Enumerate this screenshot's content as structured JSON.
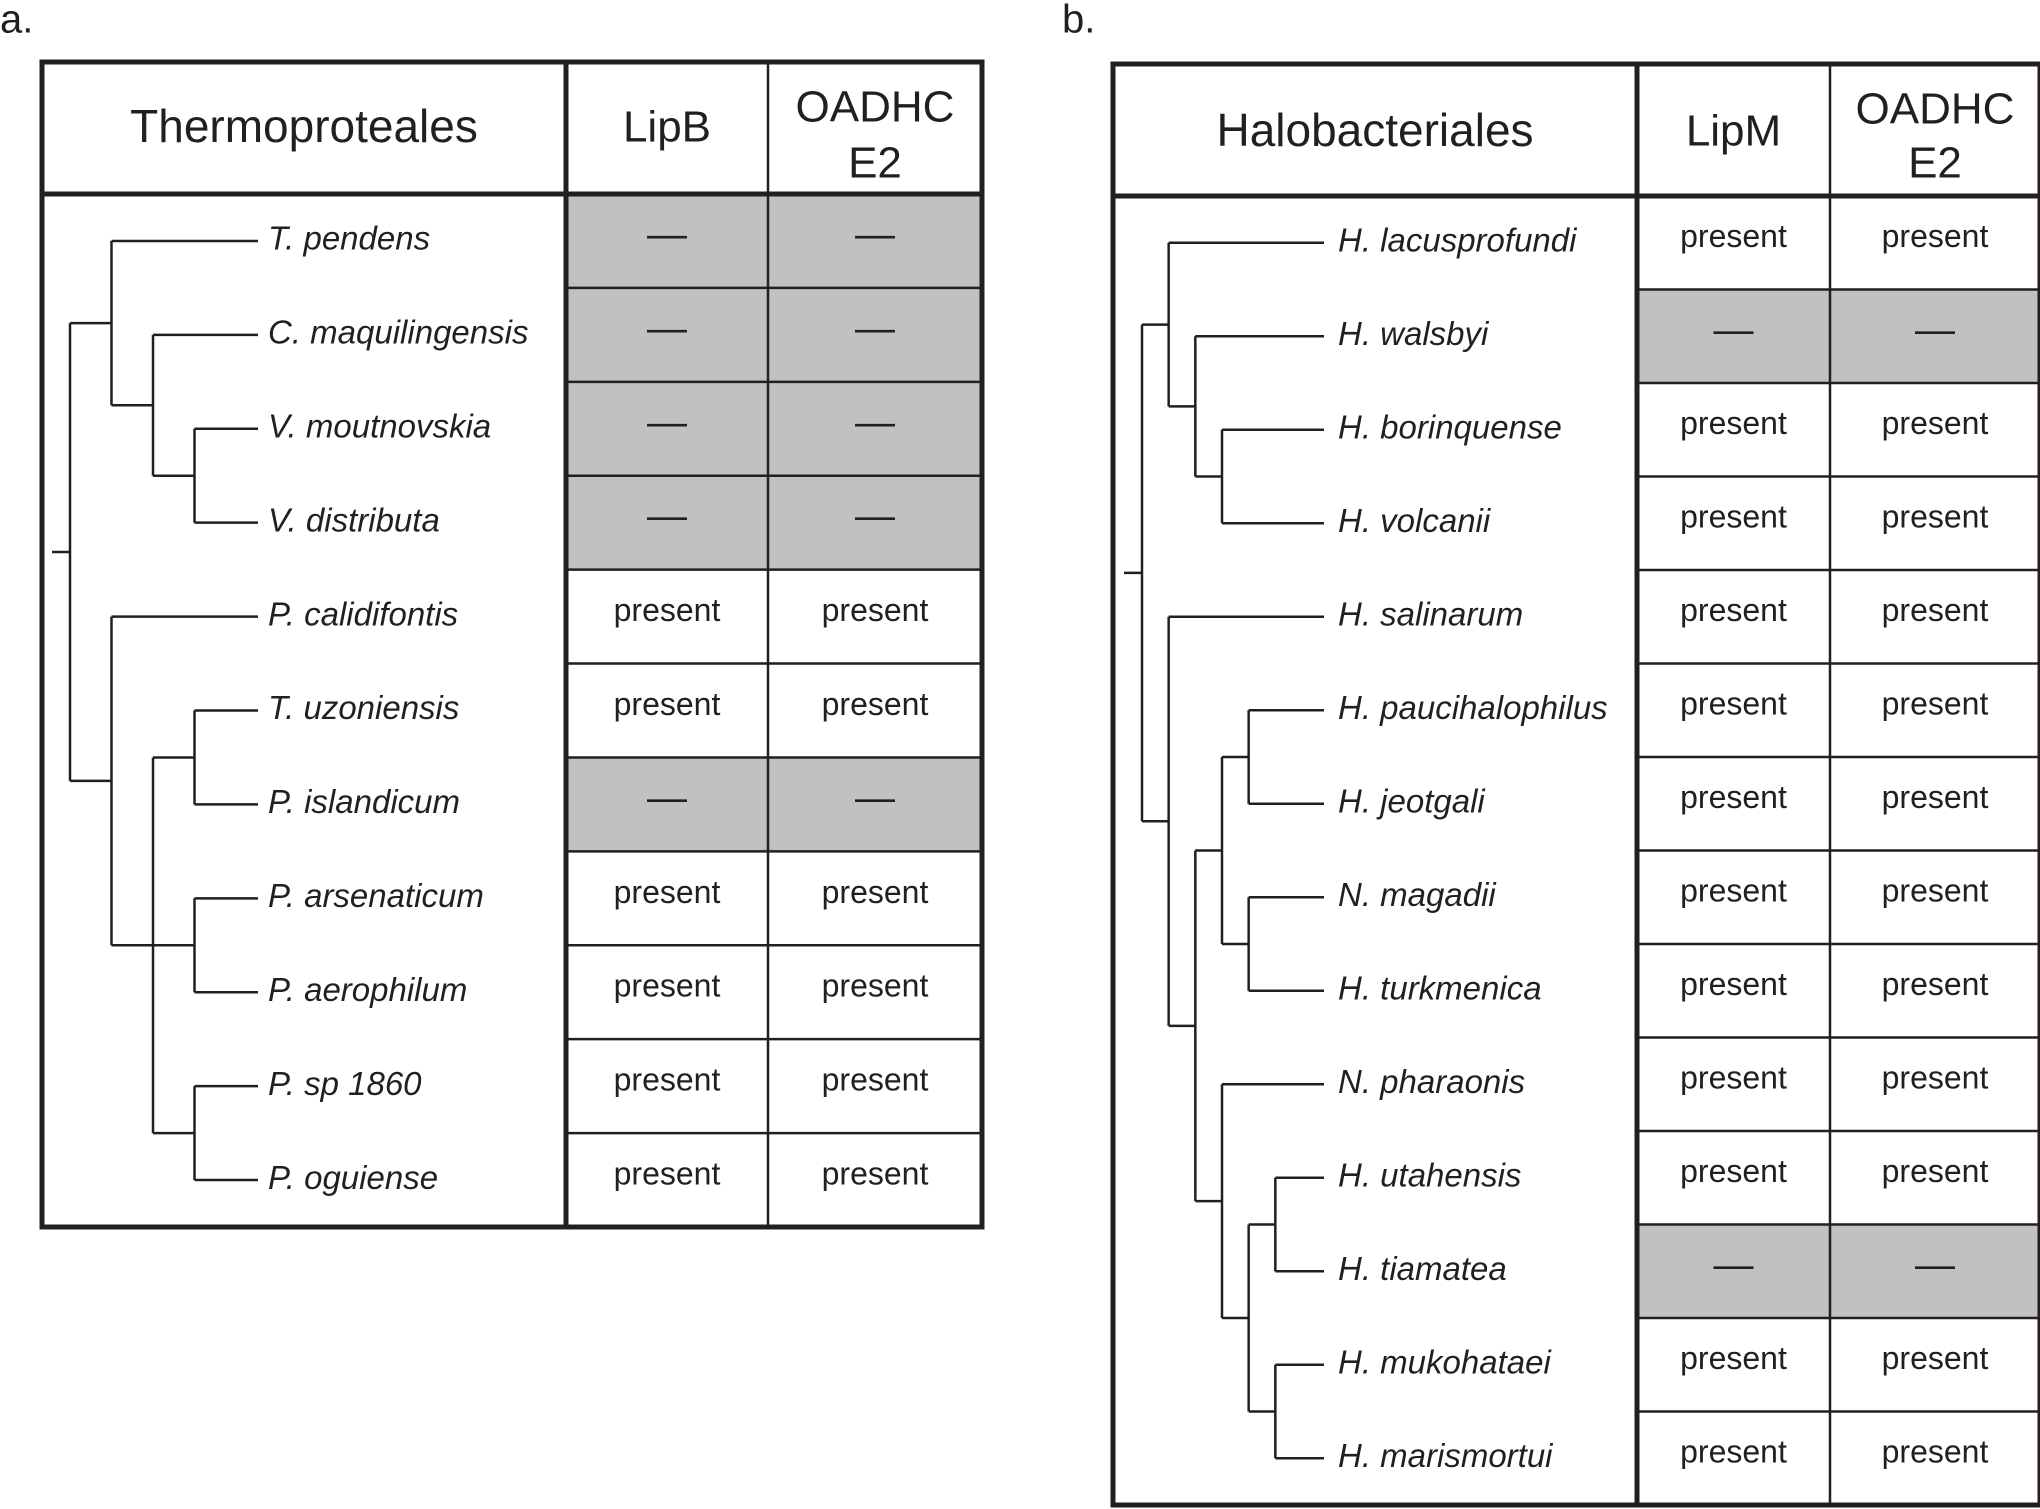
{
  "colors": {
    "ink": "#231f20",
    "absent_fill": "#c0c1c3",
    "present_fill": "#ffffff"
  },
  "panels": [
    {
      "id": "a",
      "label": "a.",
      "header": {
        "group": "Thermoproteales",
        "col1": "LipB",
        "col2_line1": "OADHC",
        "col2_line2": "E2"
      },
      "present_text": "present",
      "absent_text": "—",
      "rows": [
        {
          "taxon": "T. pendens",
          "col1": "absent",
          "col2": "absent"
        },
        {
          "taxon": "C. maquilingensis",
          "col1": "absent",
          "col2": "absent"
        },
        {
          "taxon": "V. moutnovskia",
          "col1": "absent",
          "col2": "absent"
        },
        {
          "taxon": "V. distributa",
          "col1": "absent",
          "col2": "absent"
        },
        {
          "taxon": "P. calidifontis",
          "col1": "present",
          "col2": "present"
        },
        {
          "taxon": "T. uzoniensis",
          "col1": "present",
          "col2": "present"
        },
        {
          "taxon": "P. islandicum",
          "col1": "absent",
          "col2": "absent"
        },
        {
          "taxon": "P. arsenaticum",
          "col1": "present",
          "col2": "present"
        },
        {
          "taxon": "P. aerophilum",
          "col1": "present",
          "col2": "present"
        },
        {
          "taxon": "P. sp 1860",
          "col1": "present",
          "col2": "present"
        },
        {
          "taxon": "P. oguiense",
          "col1": "present",
          "col2": "present"
        }
      ],
      "tree": {
        "c": [
          {
            "c": [
              {
                "t": 0
              },
              {
                "c": [
                  {
                    "t": 1
                  },
                  {
                    "c": [
                      {
                        "t": 2
                      },
                      {
                        "t": 3
                      }
                    ]
                  }
                ]
              }
            ]
          },
          {
            "c": [
              {
                "t": 4
              },
              {
                "c": [
                  {
                    "c": [
                      {
                        "t": 5
                      },
                      {
                        "t": 6
                      }
                    ]
                  },
                  {
                    "c": [
                      {
                        "t": 7
                      },
                      {
                        "t": 8
                      }
                    ]
                  },
                  {
                    "c": [
                      {
                        "t": 9
                      },
                      {
                        "t": 10
                      }
                    ]
                  }
                ]
              }
            ]
          }
        ]
      }
    },
    {
      "id": "b",
      "label": "b.",
      "header": {
        "group": "Halobacteriales",
        "col1": "LipM",
        "col2_line1": "OADHC",
        "col2_line2": "E2"
      },
      "present_text": "present",
      "absent_text": "—",
      "rows": [
        {
          "taxon": "H. lacusprofundi",
          "col1": "present",
          "col2": "present"
        },
        {
          "taxon": "H. walsbyi",
          "col1": "absent",
          "col2": "absent"
        },
        {
          "taxon": "H. borinquense",
          "col1": "present",
          "col2": "present"
        },
        {
          "taxon": "H. volcanii",
          "col1": "present",
          "col2": "present"
        },
        {
          "taxon": "H. salinarum",
          "col1": "present",
          "col2": "present"
        },
        {
          "taxon": "H. paucihalophilus",
          "col1": "present",
          "col2": "present"
        },
        {
          "taxon": "H. jeotgali",
          "col1": "present",
          "col2": "present"
        },
        {
          "taxon": "N. magadii",
          "col1": "present",
          "col2": "present"
        },
        {
          "taxon": "H. turkmenica",
          "col1": "present",
          "col2": "present"
        },
        {
          "taxon": "N. pharaonis",
          "col1": "present",
          "col2": "present"
        },
        {
          "taxon": "H. utahensis",
          "col1": "present",
          "col2": "present"
        },
        {
          "taxon": "H. tiamatea",
          "col1": "absent",
          "col2": "absent"
        },
        {
          "taxon": "H. mukohataei",
          "col1": "present",
          "col2": "present"
        },
        {
          "taxon": "H. marismortui",
          "col1": "present",
          "col2": "present"
        }
      ],
      "tree": {
        "c": [
          {
            "c": [
              {
                "t": 0
              },
              {
                "c": [
                  {
                    "t": 1
                  },
                  {
                    "c": [
                      {
                        "t": 2
                      },
                      {
                        "t": 3
                      }
                    ]
                  }
                ]
              }
            ]
          },
          {
            "c": [
              {
                "t": 4
              },
              {
                "c": [
                  {
                    "c": [
                      {
                        "c": [
                          {
                            "t": 5
                          },
                          {
                            "t": 6
                          }
                        ]
                      },
                      {
                        "c": [
                          {
                            "t": 7
                          },
                          {
                            "t": 8
                          }
                        ]
                      }
                    ]
                  },
                  {
                    "c": [
                      {
                        "t": 9
                      },
                      {
                        "c": [
                          {
                            "c": [
                              {
                                "t": 10
                              },
                              {
                                "t": 11
                              }
                            ]
                          },
                          {
                            "c": [
                              {
                                "t": 12
                              },
                              {
                                "t": 13
                              }
                            ]
                          }
                        ]
                      }
                    ]
                  }
                ]
              }
            ]
          }
        ]
      }
    }
  ]
}
